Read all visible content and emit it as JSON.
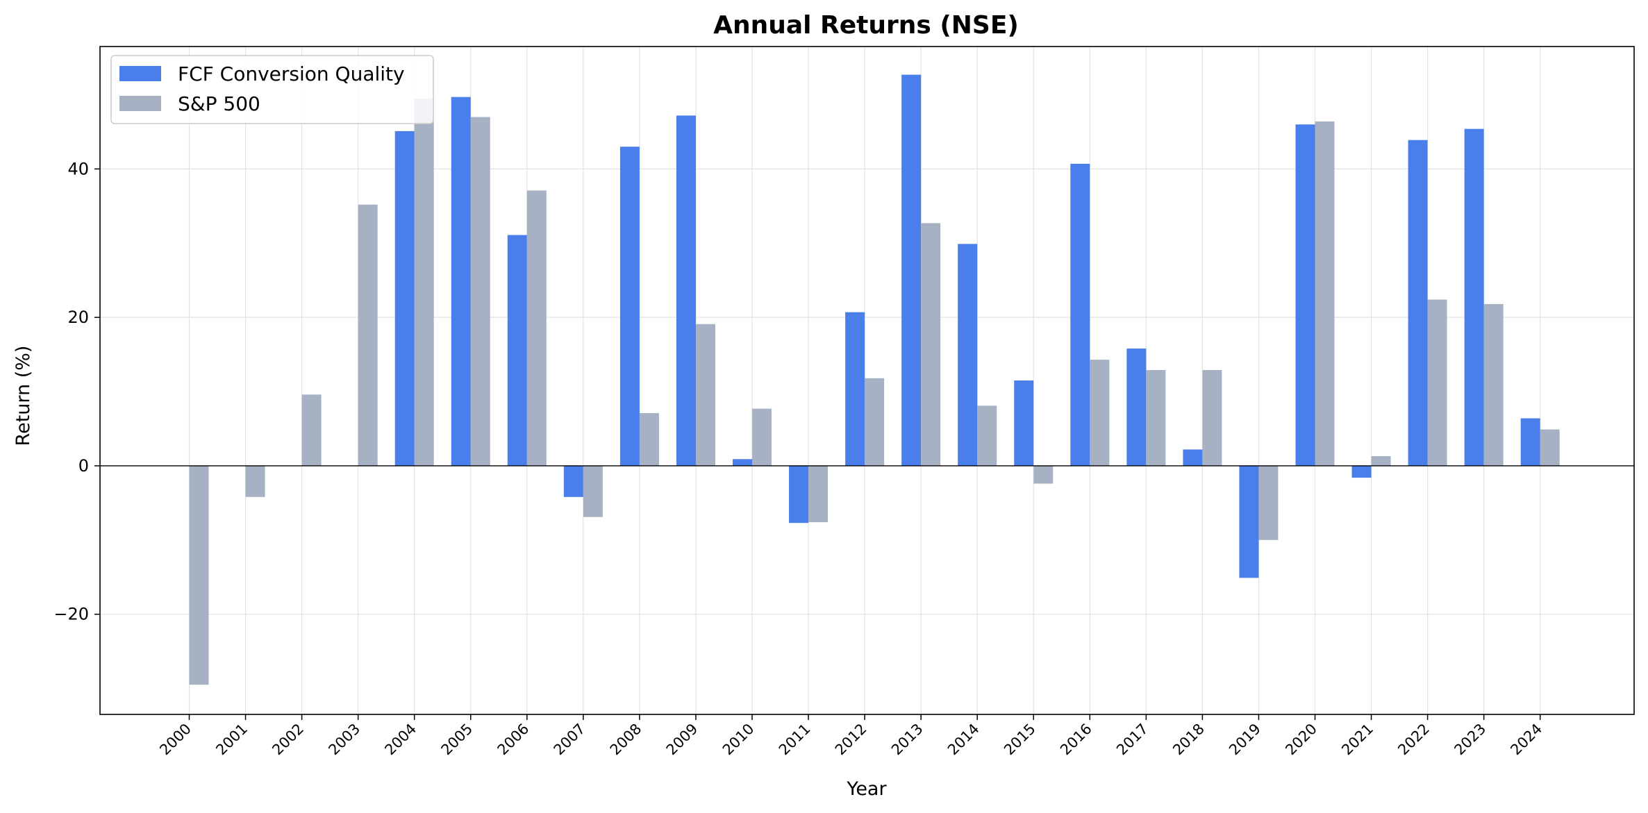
{
  "chart_data": {
    "type": "bar",
    "title": "Annual Returns (NSE)",
    "xlabel": "Year",
    "ylabel": "Return (%)",
    "ylim": [
      -33.5,
      56.5
    ],
    "yticks": [
      -20,
      0,
      20,
      40
    ],
    "ytick_labels": [
      "−20",
      "0",
      "20",
      "40"
    ],
    "grid": true,
    "legend_position": "upper-left",
    "categories": [
      "2000",
      "2001",
      "2002",
      "2003",
      "2004",
      "2005",
      "2006",
      "2007",
      "2008",
      "2009",
      "2010",
      "2011",
      "2012",
      "2013",
      "2014",
      "2015",
      "2016",
      "2017",
      "2018",
      "2019",
      "2020",
      "2021",
      "2022",
      "2023",
      "2024"
    ],
    "series": [
      {
        "name": "FCF Conversion Quality",
        "color": "#4a7eeb",
        "values": [
          null,
          null,
          null,
          null,
          45.1,
          49.7,
          31.1,
          -4.2,
          43.0,
          47.2,
          0.9,
          -7.7,
          20.7,
          52.7,
          29.9,
          11.5,
          40.7,
          15.8,
          2.2,
          -15.1,
          46.0,
          -1.6,
          43.9,
          45.4,
          6.4
        ]
      },
      {
        "name": "S&P 500",
        "color": "#a6b1c3",
        "values": [
          -29.5,
          -4.2,
          9.6,
          35.2,
          49.5,
          47.0,
          37.1,
          -6.9,
          7.1,
          19.1,
          7.7,
          -7.6,
          11.8,
          32.7,
          8.1,
          -2.4,
          14.3,
          12.9,
          12.9,
          -10.0,
          46.4,
          1.3,
          22.4,
          21.8,
          4.9
        ]
      }
    ]
  }
}
